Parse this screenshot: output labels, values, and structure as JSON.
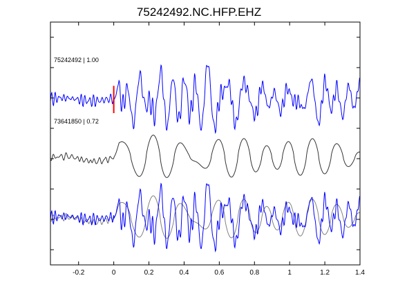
{
  "chart_data": {
    "type": "line",
    "title": "75242492.NC.HFP.EHZ",
    "xlabel": "",
    "ylabel": "",
    "xlim": [
      -0.36,
      1.4
    ],
    "xticks": [
      -0.2,
      0,
      0.2,
      0.4,
      0.6,
      0.8,
      1,
      1.2,
      1.4
    ],
    "xtick_labels": [
      "-0.2",
      "0",
      "0.2",
      "0.4",
      "0.6",
      "0.8",
      "1",
      "1.2",
      "1.4"
    ],
    "ylim": [
      0,
      8
    ],
    "yticks": [
      0.5,
      1.5,
      2.5,
      3.5,
      4.5,
      5.5,
      6.5,
      7.5
    ],
    "grid": false,
    "traces": [
      {
        "label": "75242492 | 1.00",
        "color": "#0000ff",
        "baseline": 5.45,
        "amp": 0.85,
        "seed": 7,
        "ptype": "blue"
      },
      {
        "label": "73641850 | 0.72",
        "color": "#333333",
        "baseline": 3.55,
        "amp": 0.75,
        "seed": 19,
        "ptype": "gray"
      }
    ],
    "overlay": {
      "baseline": 1.55,
      "gray_color": "#808080",
      "blue_color": "#0000ff"
    },
    "pick": {
      "x": 0,
      "ymin": 5.0,
      "ymax": 5.9,
      "color": "#ff0000"
    }
  }
}
